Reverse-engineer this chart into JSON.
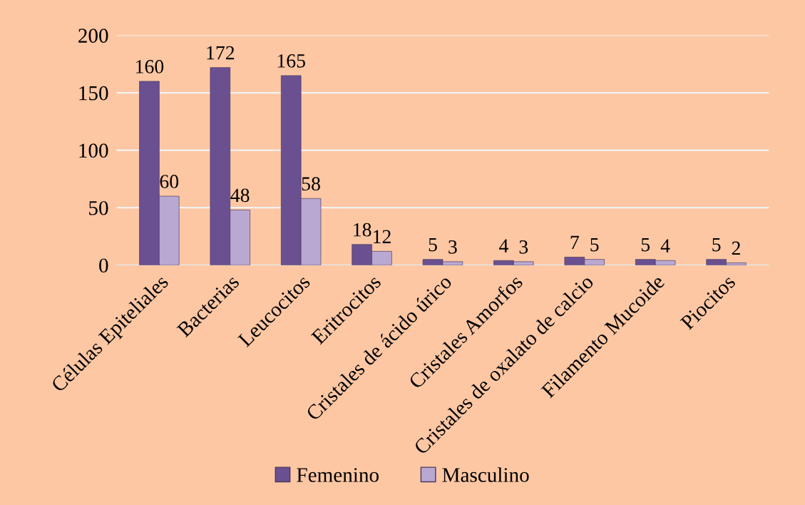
{
  "chart_data": {
    "type": "bar",
    "categories": [
      "Células Epiteliales",
      "Bacterias",
      "Leucocitos",
      "Eritrocitos",
      "Cristales de ácido úrico",
      "Cristales Amorfos",
      "Cristales de oxalato de calcio",
      "Filamento Mucoide",
      "Piocitos"
    ],
    "series": [
      {
        "name": "Femenino",
        "color": "#6a5090",
        "values": [
          160,
          172,
          165,
          18,
          5,
          4,
          7,
          5,
          5
        ]
      },
      {
        "name": "Masculino",
        "color": "#b9a9d2",
        "values": [
          60,
          48,
          58,
          12,
          3,
          3,
          5,
          4,
          2
        ]
      }
    ],
    "ylim": [
      0,
      200
    ],
    "yticks": [
      0,
      50,
      100,
      150,
      200
    ],
    "grid": "y",
    "legend": "bottom",
    "data_labels": true
  }
}
